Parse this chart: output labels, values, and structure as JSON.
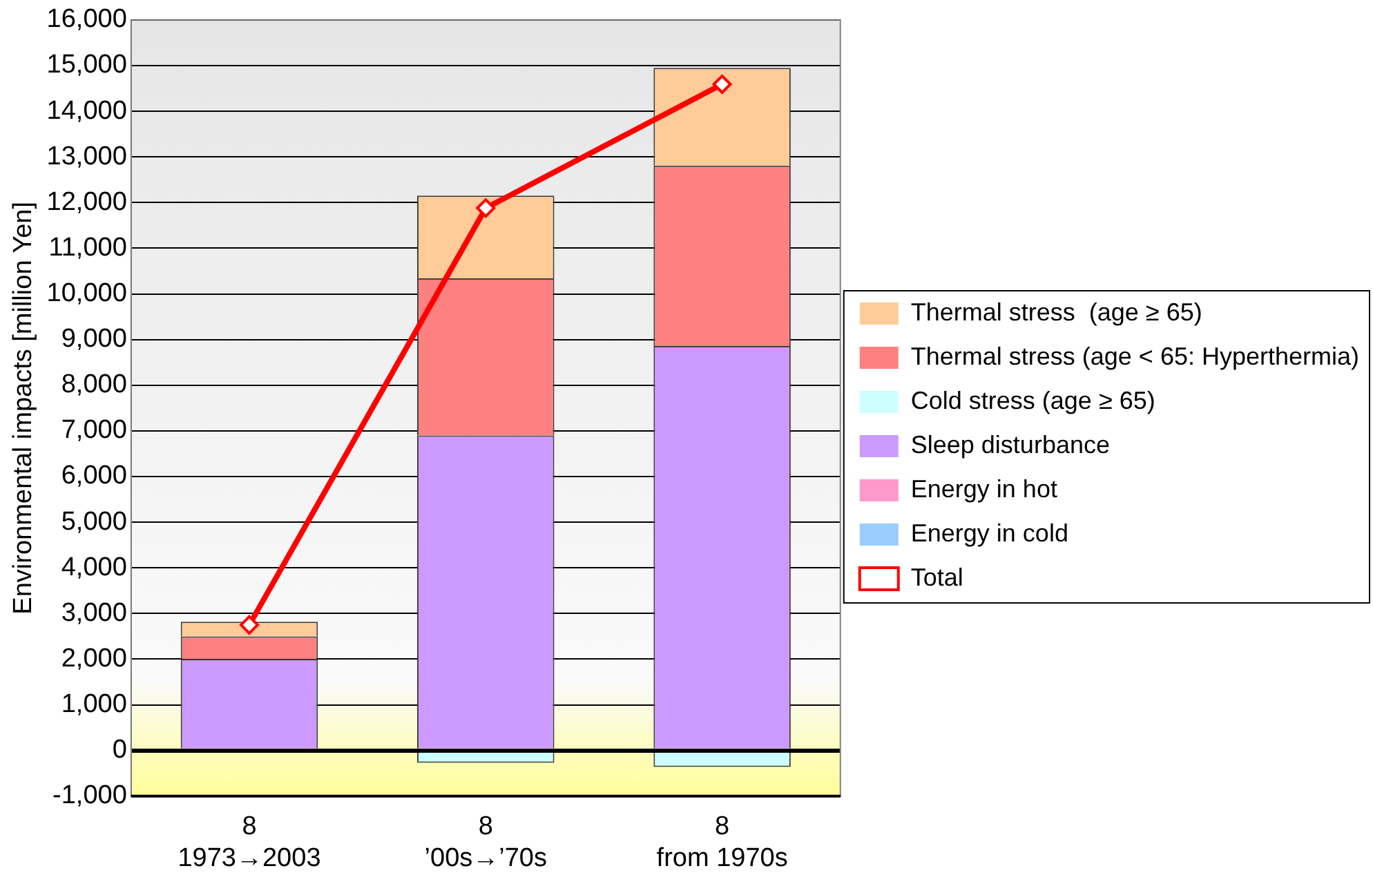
{
  "chart_data": {
    "type": "bar",
    "stacked": true,
    "ylabel": "Environmental impacts [million Yen]",
    "categories": [
      "8\n1973→2003",
      "8\n’00s→’70s",
      "8\nfrom 1970s"
    ],
    "ylim": [
      -1000,
      16000
    ],
    "yticks": [
      {
        "value": -1000,
        "label": "-1,000"
      },
      0,
      {
        "value": 1000,
        "label": "1,000"
      },
      {
        "value": 2000,
        "label": "2,000"
      },
      {
        "value": 3000,
        "label": "3,000"
      },
      {
        "value": 4000,
        "label": "4,000"
      },
      {
        "value": 5000,
        "label": "5,000"
      },
      {
        "value": 6000,
        "label": "6,000"
      },
      {
        "value": 7000,
        "label": "7,000"
      },
      {
        "value": 8000,
        "label": "8,000"
      },
      {
        "value": 9000,
        "label": "9,000"
      },
      {
        "value": 10000,
        "label": "10,000"
      },
      {
        "value": 11000,
        "label": "11,000"
      },
      {
        "value": 12000,
        "label": "12,000"
      },
      {
        "value": 13000,
        "label": "13,000"
      },
      {
        "value": 14000,
        "label": "14,000"
      },
      {
        "value": 15000,
        "label": "15,000"
      },
      {
        "value": 16000,
        "label": "16,000"
      }
    ],
    "grid": "y",
    "legend": "right",
    "series": [
      {
        "name": "Energy in cold",
        "color": "#99ccff",
        "values": [
          null,
          null,
          null
        ]
      },
      {
        "name": "Energy in hot",
        "color": "#ff99cc",
        "values": [
          null,
          null,
          null
        ]
      },
      {
        "name": "Sleep disturbance",
        "color": "#cc99ff",
        "values": [
          2000,
          6900,
          8860
        ]
      },
      {
        "name": "Cold stress (age ≥ 65)",
        "color": "#ccffff",
        "values": [
          null,
          -270,
          -360
        ]
      },
      {
        "name": "Thermal stress (age < 65: Hyperthermia)",
        "color": "#ff8080",
        "values": [
          500,
          3440,
          3950
        ]
      },
      {
        "name": "Thermal stress  (age ≥ 65)",
        "color": "#ffcc99",
        "values": [
          320,
          1810,
          2140
        ]
      },
      {
        "name": "Total",
        "type": "line",
        "color": "#ff0000",
        "marker": "diamond",
        "values": [
          2750,
          11880,
          14590
        ]
      }
    ]
  }
}
